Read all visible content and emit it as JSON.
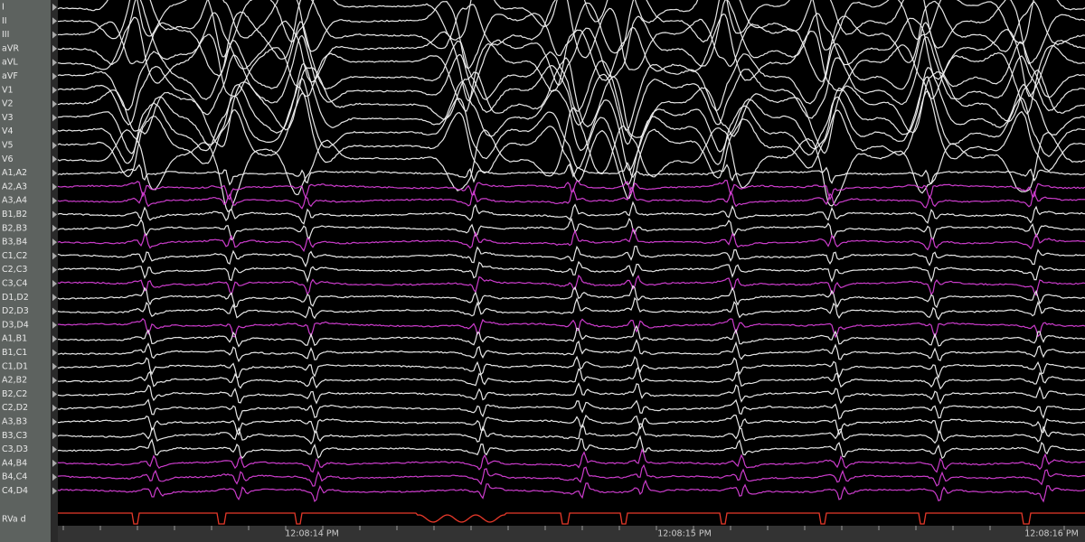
{
  "channels": [
    {
      "label": "I",
      "color": "#f2f2f2"
    },
    {
      "label": "II",
      "color": "#f2f2f2"
    },
    {
      "label": "III",
      "color": "#f2f2f2"
    },
    {
      "label": "aVR",
      "color": "#f2f2f2"
    },
    {
      "label": "aVL",
      "color": "#f2f2f2"
    },
    {
      "label": "aVF",
      "color": "#f2f2f2"
    },
    {
      "label": "V1",
      "color": "#f2f2f2"
    },
    {
      "label": "V2",
      "color": "#f2f2f2"
    },
    {
      "label": "V3",
      "color": "#f2f2f2"
    },
    {
      "label": "V4",
      "color": "#f2f2f2"
    },
    {
      "label": "V5",
      "color": "#f2f2f2"
    },
    {
      "label": "V6",
      "color": "#f2f2f2"
    },
    {
      "label": "A1,A2",
      "color": "#f2f2f2"
    },
    {
      "label": "A2,A3",
      "color": "#d63fd6"
    },
    {
      "label": "A3,A4",
      "color": "#d63fd6"
    },
    {
      "label": "B1,B2",
      "color": "#f2f2f2"
    },
    {
      "label": "B2,B3",
      "color": "#f2f2f2"
    },
    {
      "label": "B3,B4",
      "color": "#d63fd6"
    },
    {
      "label": "C1,C2",
      "color": "#f2f2f2"
    },
    {
      "label": "C2,C3",
      "color": "#f2f2f2"
    },
    {
      "label": "C3,C4",
      "color": "#d63fd6"
    },
    {
      "label": "D1,D2",
      "color": "#f2f2f2"
    },
    {
      "label": "D2,D3",
      "color": "#f2f2f2"
    },
    {
      "label": "D3,D4",
      "color": "#d63fd6"
    },
    {
      "label": "A1,B1",
      "color": "#f2f2f2"
    },
    {
      "label": "B1,C1",
      "color": "#f2f2f2"
    },
    {
      "label": "C1,D1",
      "color": "#f2f2f2"
    },
    {
      "label": "A2,B2",
      "color": "#f2f2f2"
    },
    {
      "label": "B2,C2",
      "color": "#f2f2f2"
    },
    {
      "label": "C2,D2",
      "color": "#f2f2f2"
    },
    {
      "label": "A3,B3",
      "color": "#f2f2f2"
    },
    {
      "label": "B3,C3",
      "color": "#f2f2f2"
    },
    {
      "label": "C3,D3",
      "color": "#f2f2f2"
    },
    {
      "label": "A4,B4",
      "color": "#d63fd6"
    },
    {
      "label": "B4,C4",
      "color": "#d63fd6"
    },
    {
      "label": "C4,D4",
      "color": "#d63fd6"
    }
  ],
  "rva": {
    "label": "RVa d",
    "color": "#e8392a"
  },
  "time_labels": [
    "12:08:14 PM",
    "12:08:15 PM",
    "12:08:16 PM"
  ]
}
